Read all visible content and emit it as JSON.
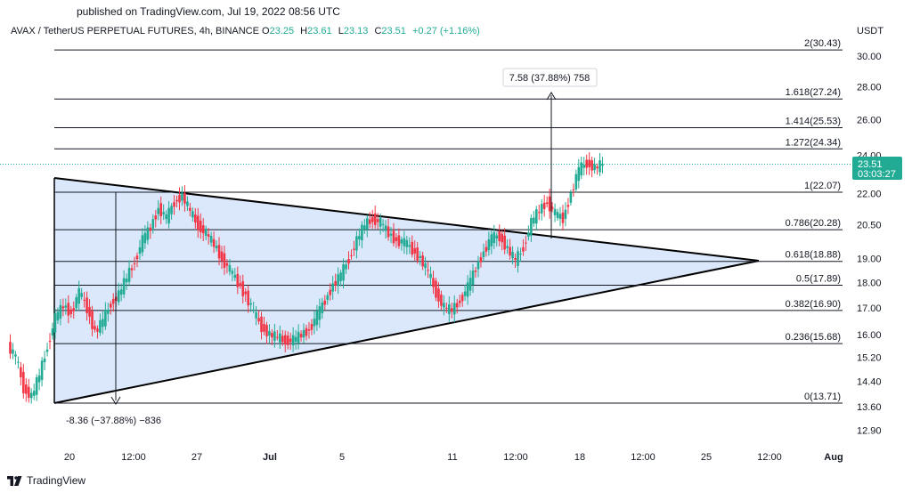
{
  "published": "published on TradingView.com, Jul 19, 2022 08:56 UTC",
  "header": {
    "symbol": "AVAX / TetherUS PERPETUAL FUTURES, 4h, BINANCE",
    "o_label": "O",
    "o": "23.25",
    "h_label": "H",
    "h": "23.61",
    "l_label": "L",
    "l": "23.13",
    "c_label": "C",
    "c": "23.51",
    "change": "+0.27 (+1.16%)"
  },
  "colors": {
    "up": "#22ab94",
    "down": "#f23645",
    "triangle_fill": "#dbe8fb",
    "price_tag": "#22ab94"
  },
  "price_tag": {
    "price": "23.51",
    "countdown": "03:03:27"
  },
  "measure_up": "7.58 (37.88%) 758",
  "measure_down": "-8.36 (−37.88%) −836",
  "brand": "TradingView",
  "chart_data": {
    "type": "candlestick",
    "y_unit": "USDT",
    "y_scale": "log",
    "y_ticks": [
      "30.00",
      "28.00",
      "26.00",
      "24.00",
      "22.00",
      "20.50",
      "19.00",
      "18.00",
      "17.00",
      "16.00",
      "15.20",
      "14.40",
      "13.60",
      "12.90"
    ],
    "x_ticks": [
      {
        "label": "20",
        "bold": false
      },
      {
        "label": "12:00",
        "bold": false
      },
      {
        "label": "27",
        "bold": false
      },
      {
        "label": "Jul",
        "bold": true
      },
      {
        "label": "5",
        "bold": false
      },
      {
        "label": "11",
        "bold": false
      },
      {
        "label": "12:00",
        "bold": false
      },
      {
        "label": "18",
        "bold": false
      },
      {
        "label": "12:00",
        "bold": false
      },
      {
        "label": "25",
        "bold": false
      },
      {
        "label": "12:00",
        "bold": false
      },
      {
        "label": "Aug",
        "bold": true
      }
    ],
    "fib_levels": [
      {
        "label": "2(30.43)",
        "value": 30.43
      },
      {
        "label": "1.618(27.24)",
        "value": 27.24
      },
      {
        "label": "1.414(25.53)",
        "value": 25.53
      },
      {
        "label": "1.272(24.34)",
        "value": 24.34
      },
      {
        "label": "1(22.07)",
        "value": 22.07
      },
      {
        "label": "0.786(20.28)",
        "value": 20.28
      },
      {
        "label": "0.618(18.88)",
        "value": 18.88
      },
      {
        "label": "0.5(17.89)",
        "value": 17.89
      },
      {
        "label": "0.382(16.90)",
        "value": 16.9
      },
      {
        "label": "0.236(15.68)",
        "value": 15.68
      },
      {
        "label": "0(13.71)",
        "value": 13.71
      }
    ],
    "price_path": [
      15.6,
      15.2,
      14.2,
      13.9,
      14.6,
      15.6,
      16.6,
      17.1,
      16.8,
      17.6,
      17.0,
      16.1,
      16.5,
      17.2,
      17.5,
      18.2,
      18.9,
      19.8,
      20.4,
      21.3,
      20.8,
      21.6,
      21.9,
      21.1,
      20.5,
      20.1,
      19.6,
      19.0,
      18.5,
      18.0,
      17.5,
      16.8,
      16.3,
      16.0,
      15.9,
      15.8,
      15.8,
      16.0,
      16.2,
      16.7,
      17.3,
      17.9,
      18.3,
      19.0,
      19.8,
      20.5,
      20.8,
      20.6,
      20.1,
      19.8,
      19.7,
      19.4,
      19.0,
      18.4,
      17.6,
      17.0,
      16.9,
      17.3,
      17.8,
      18.6,
      19.3,
      19.9,
      20.0,
      19.4,
      18.9,
      19.5,
      20.6,
      21.2,
      21.6,
      21.0,
      20.8,
      22.0,
      23.2,
      23.6,
      23.3,
      23.51
    ]
  }
}
